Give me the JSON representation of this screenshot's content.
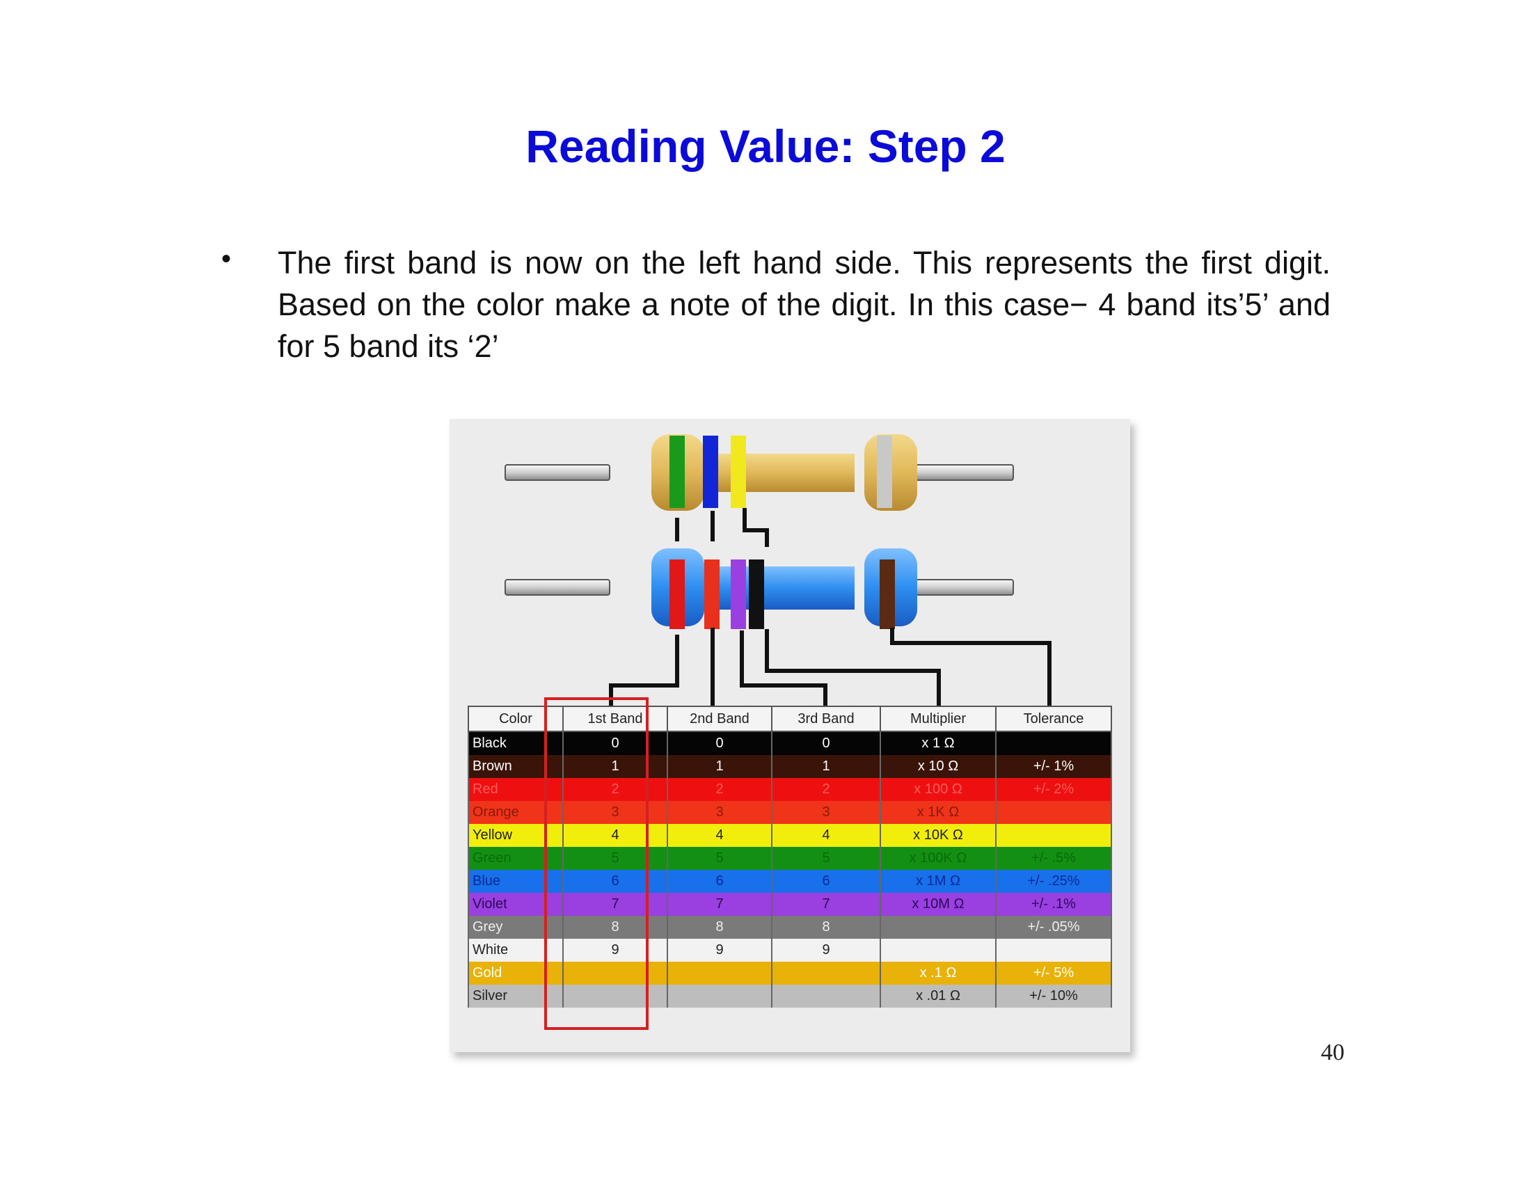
{
  "slide": {
    "title": "Reading Value: Step 2",
    "bullet_symbol": "•",
    "bullet_text": "The first band is now on the left hand side. This represents the first digit. Based on the color make a note of the digit. In this case− 4 band its’5’ and for 5 band its ‘2’",
    "page_number": "40"
  },
  "figure": {
    "resistor_4band_colors": [
      "#1a9a1a",
      "#1226d8",
      "#f2e81e",
      "#c8c8c8"
    ],
    "resistor_5band_colors": [
      "#e01818",
      "#e8301c",
      "#9a3fe0",
      "#111111",
      "#5a2a12"
    ],
    "table": {
      "headers": [
        "Color",
        "1st Band",
        "2nd Band",
        "3rd Band",
        "Multiplier",
        "Tolerance"
      ],
      "rows": [
        {
          "name": "Black",
          "b1": "0",
          "b2": "0",
          "b3": "0",
          "mult": "x 1 Ω",
          "tol": "",
          "bg": "#050505",
          "fg": "#ffffff"
        },
        {
          "name": "Brown",
          "b1": "1",
          "b2": "1",
          "b3": "1",
          "mult": "x 10 Ω",
          "tol": "+/- 1%",
          "bg": "#3a1408",
          "fg": "#ffffff"
        },
        {
          "name": "Red",
          "b1": "2",
          "b2": "2",
          "b3": "2",
          "mult": "x 100 Ω",
          "tol": "+/- 2%",
          "bg": "#ee1010",
          "fg": "#ff5a5a"
        },
        {
          "name": "Orange",
          "b1": "3",
          "b2": "3",
          "b3": "3",
          "mult": "x 1K Ω",
          "tol": "",
          "bg": "#f0341a",
          "fg": "#8a1a08"
        },
        {
          "name": "Yellow",
          "b1": "4",
          "b2": "4",
          "b3": "4",
          "mult": "x 10K Ω",
          "tol": "",
          "bg": "#f2ee0c",
          "fg": "#222222"
        },
        {
          "name": "Green",
          "b1": "5",
          "b2": "5",
          "b3": "5",
          "mult": "x 100K Ω",
          "tol": "+/- .5%",
          "bg": "#139014",
          "fg": "#0a6a0a"
        },
        {
          "name": "Blue",
          "b1": "6",
          "b2": "6",
          "b3": "6",
          "mult": "x 1M Ω",
          "tol": "+/- .25%",
          "bg": "#1870ea",
          "fg": "#0a2a9a"
        },
        {
          "name": "Violet",
          "b1": "7",
          "b2": "7",
          "b3": "7",
          "mult": "x 10M Ω",
          "tol": "+/- .1%",
          "bg": "#9a3fe0",
          "fg": "#2a0a5a"
        },
        {
          "name": "Grey",
          "b1": "8",
          "b2": "8",
          "b3": "8",
          "mult": "",
          "tol": "+/- .05%",
          "bg": "#7a7a7a",
          "fg": "#eeeeee"
        },
        {
          "name": "White",
          "b1": "9",
          "b2": "9",
          "b3": "9",
          "mult": "",
          "tol": "",
          "bg": "#f2f2f2",
          "fg": "#222222"
        },
        {
          "name": "Gold",
          "b1": "",
          "b2": "",
          "b3": "",
          "mult": "x .1 Ω",
          "tol": "+/- 5%",
          "bg": "#e8b208",
          "fg": "#ffffff"
        },
        {
          "name": "Silver",
          "b1": "",
          "b2": "",
          "b3": "",
          "mult": "x .01 Ω",
          "tol": "+/- 10%",
          "bg": "#bdbdbd",
          "fg": "#222222"
        }
      ]
    }
  }
}
